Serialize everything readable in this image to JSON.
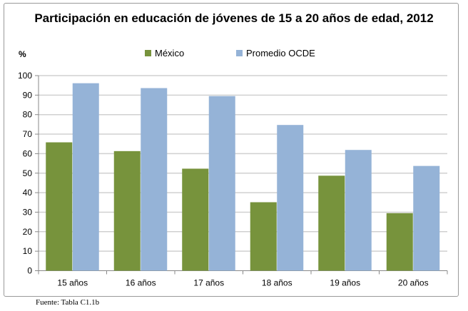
{
  "chart_data": {
    "type": "bar",
    "title": "Participación en educación de jóvenes de 15 a 20 años de edad, 2012",
    "ylabel": "%",
    "xlabel": "",
    "ylim": [
      0,
      100
    ],
    "yticks": [
      0,
      10,
      20,
      30,
      40,
      50,
      60,
      70,
      80,
      90,
      100
    ],
    "grid": true,
    "legend": "top",
    "categories": [
      "15 años",
      "16 años",
      "17 años",
      "18 años",
      "19 años",
      "20 años"
    ],
    "series": [
      {
        "name": "México",
        "color": "#77933c",
        "values": [
          65.8,
          61.3,
          52.3,
          35.1,
          48.7,
          29.5
        ]
      },
      {
        "name": "Promedio OCDE",
        "color": "#95b3d7",
        "values": [
          96.1,
          93.6,
          89.5,
          74.7,
          61.9,
          53.7
        ]
      }
    ]
  },
  "footer": "Fuente: Tabla C1.1b"
}
